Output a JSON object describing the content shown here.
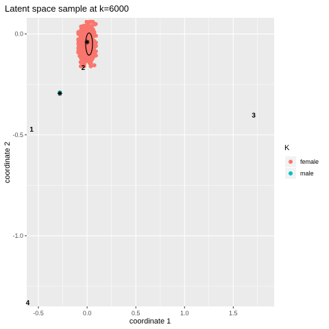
{
  "chart_data": {
    "type": "scatter",
    "title": "Latent space sample at k=6000",
    "xlabel": "coordinate 1",
    "ylabel": "coordinate 2",
    "xlim": [
      -0.62,
      1.92
    ],
    "ylim": [
      -1.35,
      0.08
    ],
    "x_ticks": [
      -0.5,
      0.0,
      0.5,
      1.0,
      1.5
    ],
    "x_tick_labels": [
      "-0.5",
      "0.0",
      "0.5",
      "1.0",
      "1.5"
    ],
    "y_ticks": [
      0.0,
      -0.5,
      -1.0
    ],
    "y_tick_labels": [
      "0.0",
      "-0.5",
      "-1.0"
    ],
    "grid": true,
    "legend_position": "right",
    "legend": {
      "title": "K",
      "entries": [
        {
          "label": "female",
          "color": "#F8766D"
        },
        {
          "label": "male",
          "color": "#00BFC4"
        }
      ]
    },
    "series": [
      {
        "name": "female",
        "color": "#F8766D",
        "center": [
          0.0,
          -0.05
        ],
        "spread": [
          0.09,
          0.11
        ],
        "count": 450
      },
      {
        "name": "male",
        "color": "#00BFC4",
        "center": [
          -0.28,
          -0.29
        ],
        "spread": [
          0.0,
          0.0
        ],
        "count": 1
      }
    ],
    "ellipse": {
      "center": [
        0.02,
        -0.05
      ],
      "rx": 0.035,
      "ry": 0.055
    },
    "centroids": [
      {
        "x": 0.0,
        "y": -0.04
      },
      {
        "x": -0.28,
        "y": -0.295
      }
    ],
    "annotations": [
      {
        "text": "1",
        "x": -0.57,
        "y": -0.47
      },
      {
        "text": "2",
        "x": -0.04,
        "y": -0.165
      },
      {
        "text": "3",
        "x": 1.71,
        "y": -0.4
      },
      {
        "text": "4",
        "x": -0.61,
        "y": -1.33
      }
    ]
  }
}
